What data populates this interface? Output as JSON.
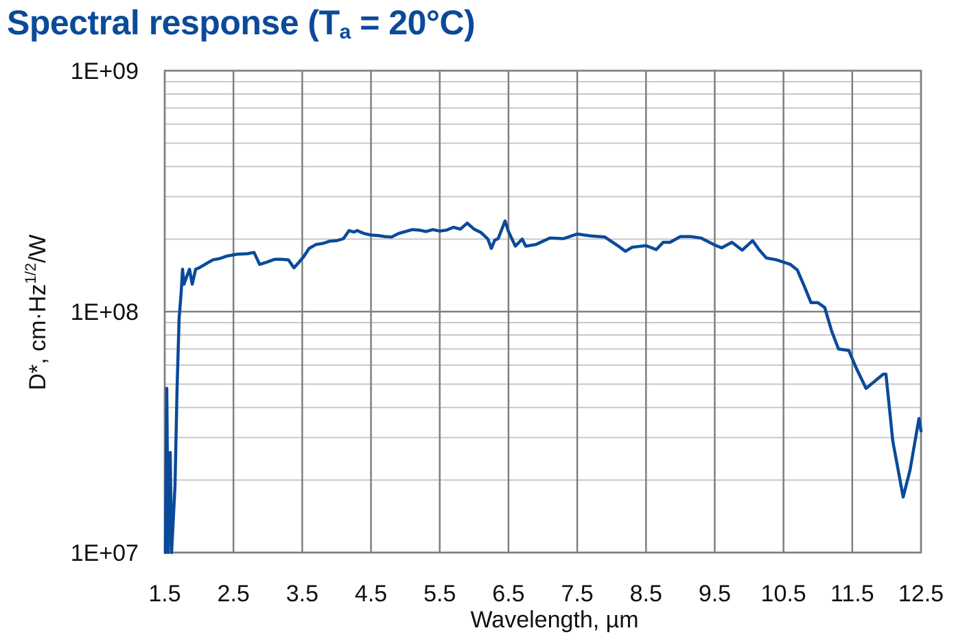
{
  "title": {
    "main": "Spectral response (T",
    "subscript": "a",
    "tail": " = 20°C)",
    "color": "#0a4a9a"
  },
  "chart_data": {
    "type": "line",
    "title": "Spectral response (Ta = 20°C)",
    "xlabel": "Wavelength, µm",
    "ylabel": "D*, cm·Hz^1/2/W",
    "xlim": [
      1.5,
      12.5
    ],
    "ylim": [
      10000000.0,
      1000000000.0
    ],
    "yscale": "log",
    "grid": true,
    "x_ticks": [
      "1.5",
      "2.5",
      "3.5",
      "4.5",
      "5.5",
      "6.5",
      "7.5",
      "8.5",
      "9.5",
      "10.5",
      "11.5",
      "12.5"
    ],
    "y_ticks": [
      "1E+07",
      "1E+08",
      "1E+09"
    ],
    "line_color": "#0a4a9a",
    "series": [
      {
        "name": "D*",
        "x": [
          1.51,
          1.53,
          1.55,
          1.58,
          1.6,
          1.65,
          1.68,
          1.71,
          1.74,
          1.76,
          1.78,
          1.82,
          1.86,
          1.9,
          1.95,
          2.0,
          2.1,
          2.2,
          2.3,
          2.4,
          2.55,
          2.7,
          2.8,
          2.88,
          3.0,
          3.1,
          3.2,
          3.3,
          3.38,
          3.45,
          3.52,
          3.6,
          3.7,
          3.8,
          3.9,
          4.0,
          4.1,
          4.18,
          4.25,
          4.3,
          4.4,
          4.5,
          4.6,
          4.7,
          4.8,
          4.9,
          5.0,
          5.1,
          5.2,
          5.3,
          5.4,
          5.5,
          5.6,
          5.7,
          5.8,
          5.9,
          6.0,
          6.1,
          6.2,
          6.25,
          6.3,
          6.35,
          6.45,
          6.5,
          6.6,
          6.7,
          6.75,
          6.9,
          7.1,
          7.3,
          7.5,
          7.7,
          7.9,
          8.1,
          8.2,
          8.3,
          8.5,
          8.65,
          8.75,
          8.85,
          9.0,
          9.15,
          9.3,
          9.5,
          9.6,
          9.75,
          9.9,
          10.05,
          10.15,
          10.25,
          10.4,
          10.6,
          10.7,
          10.8,
          10.9,
          11.0,
          11.1,
          11.2,
          11.3,
          11.45,
          11.55,
          11.7,
          11.95,
          11.99,
          12.09,
          12.24,
          12.34,
          12.47,
          12.5
        ],
        "y": [
          10000000.0,
          48000000.0,
          10000000.0,
          26000000.0,
          10000000.0,
          19000000.0,
          48000000.0,
          94000000.0,
          120000000.0,
          150000000.0,
          130000000.0,
          140000000.0,
          150000000.0,
          130000000.0,
          150000000.0,
          152000000.0,
          158000000.0,
          164000000.0,
          166000000.0,
          170000000.0,
          173000000.0,
          174000000.0,
          176000000.0,
          157000000.0,
          161000000.0,
          165000000.0,
          165000000.0,
          164000000.0,
          152000000.0,
          160000000.0,
          169000000.0,
          183000000.0,
          190000000.0,
          192000000.0,
          196000000.0,
          197000000.0,
          201000000.0,
          217000000.0,
          214000000.0,
          217000000.0,
          211000000.0,
          208000000.0,
          207000000.0,
          205000000.0,
          204000000.0,
          211000000.0,
          215000000.0,
          219000000.0,
          218000000.0,
          215000000.0,
          219000000.0,
          216000000.0,
          218000000.0,
          224000000.0,
          220000000.0,
          233000000.0,
          220000000.0,
          213000000.0,
          200000000.0,
          183000000.0,
          198000000.0,
          201000000.0,
          238000000.0,
          215000000.0,
          187000000.0,
          200000000.0,
          187000000.0,
          190000000.0,
          202000000.0,
          201000000.0,
          210000000.0,
          206000000.0,
          204000000.0,
          187000000.0,
          178000000.0,
          185000000.0,
          188000000.0,
          181000000.0,
          194000000.0,
          194000000.0,
          205000000.0,
          205000000.0,
          202000000.0,
          189000000.0,
          184000000.0,
          194000000.0,
          180000000.0,
          197000000.0,
          180000000.0,
          167000000.0,
          164000000.0,
          157000000.0,
          149000000.0,
          128000000.0,
          109000000.0,
          109000000.0,
          104000000.0,
          83000000.0,
          70000000.0,
          69000000.0,
          59000000.0,
          48000000.0,
          55000000.0,
          55000000.0,
          29000000.0,
          17000000.0,
          22000000.0,
          36000000.0,
          32000000.0
        ]
      }
    ]
  },
  "axes": {
    "x_label": "Wavelength, µm",
    "y_label_main": "D*, cm·Hz",
    "y_label_sup": "1/2",
    "y_label_tail": "/W"
  }
}
